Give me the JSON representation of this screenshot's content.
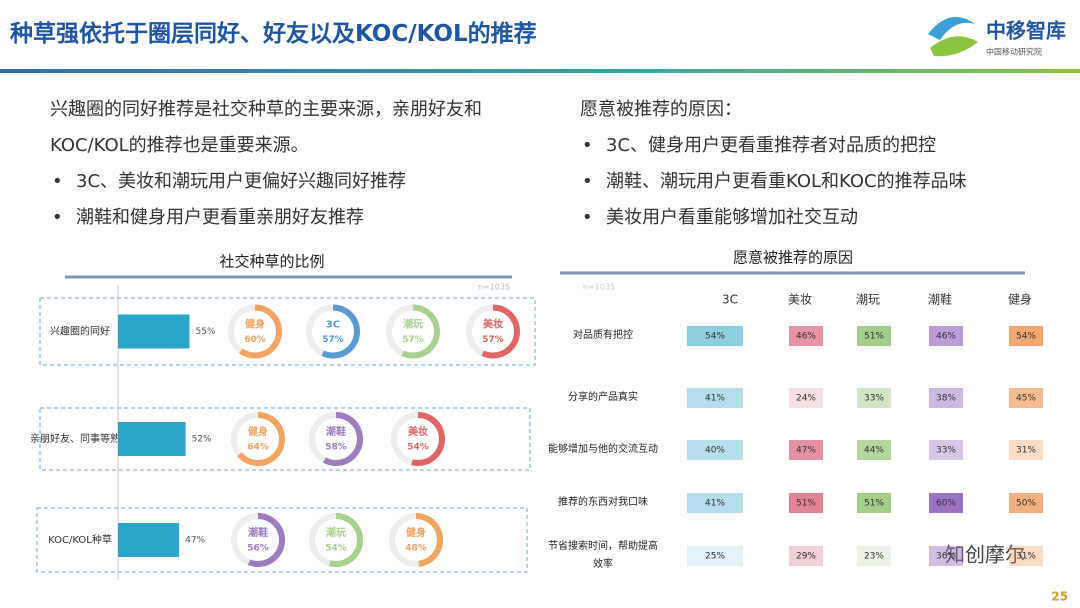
{
  "header": {
    "title": "种草强依托于圈层同好、好友以及KOC/KOL的推荐"
  },
  "logo": {
    "name": "中移智库",
    "subtitle": "中国移动研究院"
  },
  "left_text": {
    "lead": "兴趣圈的同好推荐是社交种草的主要来源，亲朋好友和KOC/KOL的推荐也是重要来源。",
    "bullets": [
      "3C、美妆和潮玩用户更偏好兴趣同好推荐",
      "潮鞋和健身用户更看重亲朋好友推荐"
    ]
  },
  "right_text": {
    "heading": "愿意被推荐的原因：",
    "bullets": [
      "3C、健身用户更看重推荐者对品质的把控",
      "潮鞋、潮玩用户更看重KOL和KOC的推荐品味",
      "美妆用户看重能够增加社交互动"
    ]
  },
  "left_chart": {
    "title": "社交种草的比例",
    "note": "n=1035",
    "rows": [
      {
        "label": "兴趣圈的同好",
        "value": 55,
        "value_label": "55%",
        "circles": [
          {
            "label": "健身",
            "value": 60,
            "value_label": "60%",
            "color": "#f4a460"
          },
          {
            "label": "3C",
            "value": 57,
            "value_label": "57%",
            "color": "#5b9bd5"
          },
          {
            "label": "潮玩",
            "value": 57,
            "value_label": "57%",
            "color": "#a9d18e"
          },
          {
            "label": "美妆",
            "value": 57,
            "value_label": "57%",
            "color": "#e06666"
          }
        ]
      },
      {
        "label": "亲朋好友、同事等熟人",
        "value": 52,
        "value_label": "52%",
        "circles": [
          {
            "label": "健身",
            "value": 64,
            "value_label": "64%",
            "color": "#f4a460"
          },
          {
            "label": "潮鞋",
            "value": 58,
            "value_label": "58%",
            "color": "#9e7cc1"
          },
          {
            "label": "美妆",
            "value": 54,
            "value_label": "54%",
            "color": "#e06666"
          }
        ]
      },
      {
        "label": "KOC/KOL种草",
        "value": 47,
        "value_label": "47%",
        "circles": [
          {
            "label": "潮鞋",
            "value": 56,
            "value_label": "56%",
            "color": "#9e7cc1"
          },
          {
            "label": "潮玩",
            "value": 54,
            "value_label": "54%",
            "color": "#a9d18e"
          },
          {
            "label": "健身",
            "value": 48,
            "value_label": "48%",
            "color": "#f4a460"
          }
        ]
      }
    ],
    "bar_color": "#2aa6c8"
  },
  "right_chart": {
    "title": "愿意被推荐的原因",
    "note": "n=1035",
    "columns": [
      "3C",
      "美妆",
      "潮玩",
      "潮鞋",
      "健身"
    ],
    "colors": [
      "#7cc6dc",
      "#d9667a",
      "#8cc06a",
      "#9b73c2",
      "#f09a5a"
    ],
    "rows": [
      {
        "label": "对品质有把控",
        "values": [
          54,
          46,
          51,
          46,
          54
        ],
        "value_labels": [
          "54%",
          "46%",
          "51%",
          "46%",
          "54%"
        ]
      },
      {
        "label": "分享的产品真实",
        "values": [
          41,
          24,
          33,
          38,
          45
        ],
        "value_labels": [
          "41%",
          "24%",
          "33%",
          "38%",
          "45%"
        ]
      },
      {
        "label": "能够增加与他的交流互动",
        "values": [
          40,
          47,
          44,
          33,
          31
        ],
        "value_labels": [
          "40%",
          "47%",
          "44%",
          "33%",
          "31%"
        ]
      },
      {
        "label": "推荐的东西对我口味",
        "values": [
          41,
          51,
          51,
          60,
          50
        ],
        "value_labels": [
          "41%",
          "51%",
          "51%",
          "60%",
          "50%"
        ]
      },
      {
        "label": "节省搜索时间，帮助提高效率",
        "values": [
          25,
          29,
          23,
          36,
          31
        ],
        "value_labels": [
          "25%",
          "29%",
          "23%",
          "36%",
          "31%"
        ]
      }
    ]
  },
  "watermark": "知创摩尔",
  "page_number": "25"
}
